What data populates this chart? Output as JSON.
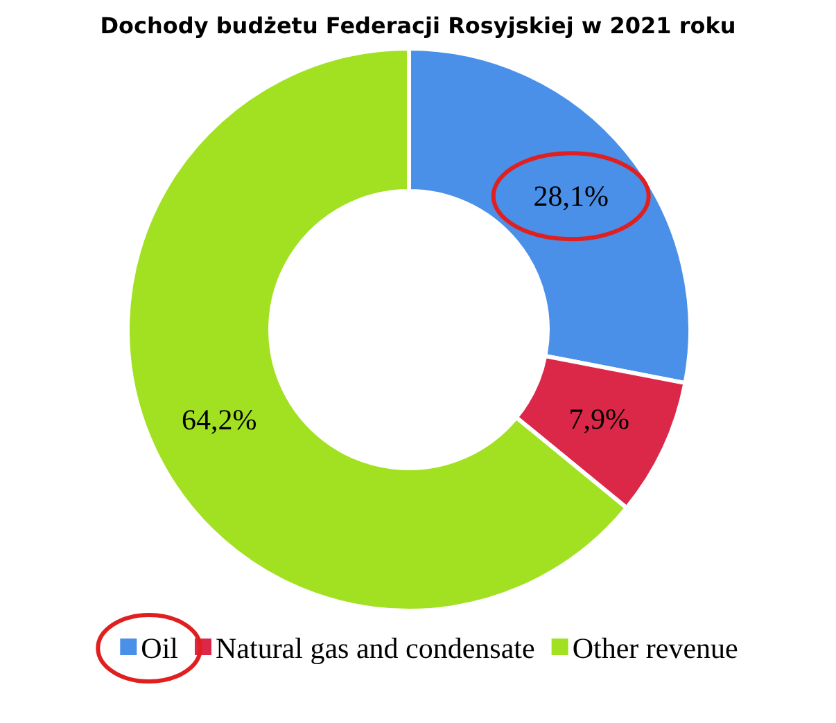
{
  "chart_data": {
    "type": "donut",
    "title": "Dochody budżetu Federacji Rosyjskiej w 2021 roku",
    "categories": [
      "Oil",
      "Natural gas and condensate",
      "Other revenue"
    ],
    "values": [
      28.1,
      7.9,
      64.2
    ],
    "colors": [
      "#4a90e8",
      "#dc2848",
      "#a2e022"
    ],
    "value_labels": [
      "28,1%",
      "7,9%",
      "64,2%"
    ],
    "legend": "bottom"
  }
}
